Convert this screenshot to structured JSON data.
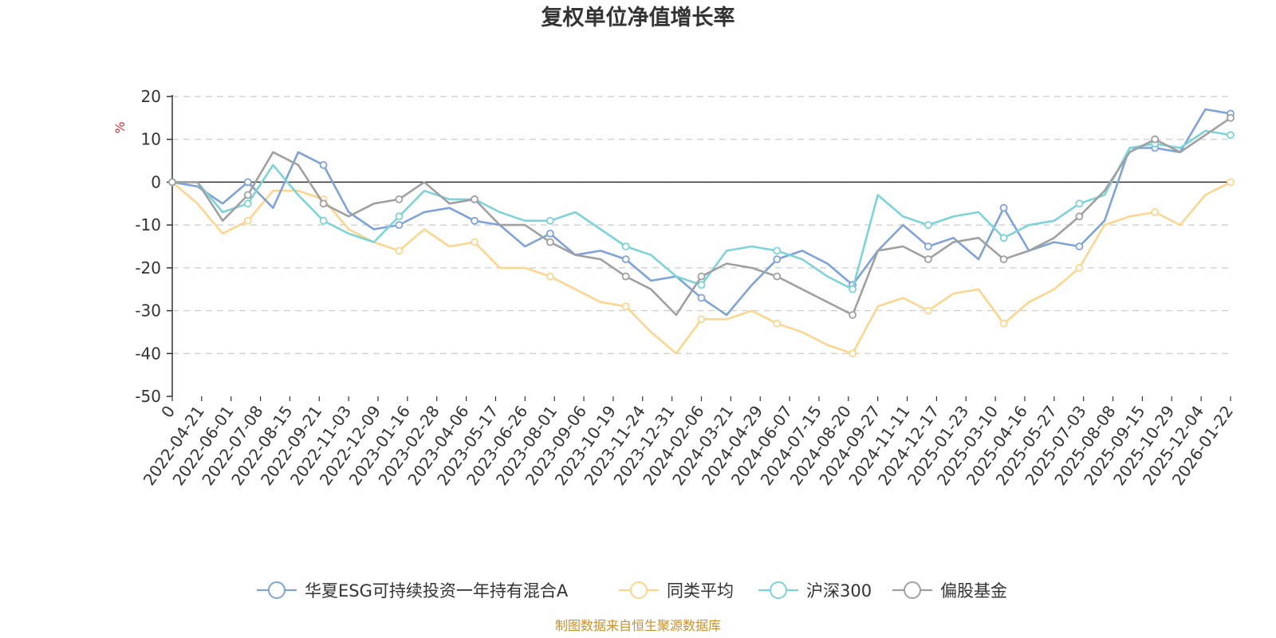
{
  "chart_data": {
    "type": "line",
    "title": "复权单位净值增长率",
    "ylabel": "%",
    "ylim": [
      -50,
      20
    ],
    "yticks": [
      20,
      10,
      0,
      -10,
      -20,
      -30,
      -40,
      -50
    ],
    "xlabels": [
      "0",
      "2022-04-21",
      "2022-06-01",
      "2022-07-08",
      "2022-08-15",
      "2022-09-21",
      "2022-11-03",
      "2022-12-09",
      "2023-01-16",
      "2023-02-28",
      "2023-04-06",
      "2023-05-17",
      "2023-06-26",
      "2023-08-01",
      "2023-09-06",
      "2023-10-19",
      "2023-11-24",
      "2023-12-31",
      "2024-02-06",
      "2024-03-21",
      "2024-04-29",
      "2024-06-07",
      "2024-07-15",
      "2024-08-20",
      "2024-09-27",
      "2024-11-11",
      "2024-12-17",
      "2025-01-23",
      "2025-03-10",
      "2025-04-16",
      "2025-05-27",
      "2025-07-03",
      "2025-08-08",
      "2025-09-15",
      "2025-10-29",
      "2025-12-04",
      "2026-01-22"
    ],
    "grid": true,
    "legend_position": "bottom-center",
    "series": [
      {
        "name": "华夏ESG可持续投资一年持有混合A",
        "color": "#7fa3d6",
        "values": [
          0,
          -1,
          -5,
          0,
          -6,
          7,
          4,
          -7,
          -11,
          -10,
          -7,
          -6,
          -9,
          -10,
          -15,
          -12,
          -17,
          -16,
          -18,
          -23,
          -22,
          -27,
          -31,
          -24,
          -18,
          -16,
          -19,
          -24,
          -16,
          -10,
          -15,
          -13,
          -18,
          -6,
          -16,
          -14,
          -15,
          -9,
          8,
          8,
          7,
          17,
          16
        ]
      },
      {
        "name": "同类平均",
        "color": "#fbd68f",
        "values": [
          0,
          -5,
          -12,
          -9,
          -2,
          -2,
          -4,
          -11,
          -14,
          -16,
          -11,
          -15,
          -14,
          -20,
          -20,
          -22,
          -25,
          -28,
          -29,
          -35,
          -40,
          -32,
          -32,
          -30,
          -33,
          -35,
          -38,
          -40,
          -29,
          -27,
          -30,
          -26,
          -25,
          -33,
          -28,
          -25,
          -20,
          -10,
          -8,
          -7,
          -10,
          -3,
          0
        ]
      },
      {
        "name": "沪深300",
        "color": "#7dd3d8",
        "values": [
          0,
          0,
          -7,
          -5,
          4,
          -3,
          -9,
          -12,
          -14,
          -8,
          -2,
          -4,
          -4,
          -7,
          -9,
          -9,
          -7,
          -11,
          -15,
          -17,
          -22,
          -24,
          -16,
          -15,
          -16,
          -18,
          -22,
          -25,
          -3,
          -8,
          -10,
          -8,
          -7,
          -13,
          -10,
          -9,
          -5,
          -3,
          8,
          9,
          8,
          12,
          11
        ]
      },
      {
        "name": "偏股基金",
        "color": "#a0a0a0",
        "values": [
          0,
          0,
          -9,
          -3,
          7,
          4,
          -5,
          -8,
          -5,
          -4,
          0,
          -5,
          -4,
          -10,
          -10,
          -14,
          -17,
          -18,
          -22,
          -25,
          -31,
          -22,
          -19,
          -20,
          -22,
          -25,
          -28,
          -31,
          -16,
          -15,
          -18,
          -14,
          -13,
          -18,
          -16,
          -13,
          -8,
          -2,
          7,
          10,
          7,
          11,
          15
        ]
      }
    ]
  },
  "source_text": "制图数据来自恒生聚源数据库"
}
